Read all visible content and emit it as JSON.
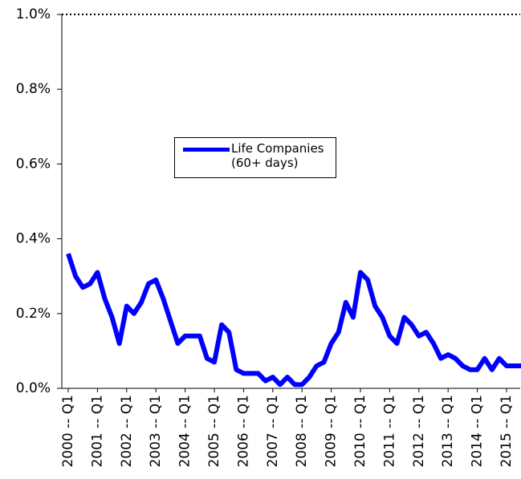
{
  "chart_data": {
    "type": "line",
    "categories": [
      "2000 -- Q1",
      null,
      null,
      null,
      "2001 -- Q1",
      null,
      null,
      null,
      "2002 -- Q1",
      null,
      null,
      null,
      "2003 -- Q1",
      null,
      null,
      null,
      "2004 -- Q1",
      null,
      null,
      null,
      "2005 -- Q1",
      null,
      null,
      null,
      "2006 -- Q1",
      null,
      null,
      null,
      "2007 -- Q1",
      null,
      null,
      null,
      "2008 -- Q1",
      null,
      null,
      null,
      "2009 -- Q1",
      null,
      null,
      null,
      "2010 -- Q1",
      null,
      null,
      null,
      "2011 -- Q1",
      null,
      null,
      null,
      "2012 -- Q1",
      null,
      null,
      null,
      "2013 -- Q1",
      null,
      null,
      null,
      "2014 -- Q1",
      null,
      null,
      null,
      "2015 -- Q1",
      null,
      null
    ],
    "series": [
      {
        "name": "Life Companies (60+ days)",
        "color": "#0000ff",
        "values": [
          0.36,
          0.3,
          0.27,
          0.28,
          0.31,
          0.24,
          0.19,
          0.12,
          0.22,
          0.2,
          0.23,
          0.28,
          0.29,
          0.24,
          0.18,
          0.12,
          0.14,
          0.14,
          0.14,
          0.08,
          0.07,
          0.17,
          0.15,
          0.05,
          0.04,
          0.04,
          0.04,
          0.02,
          0.03,
          0.01,
          0.03,
          0.01,
          0.01,
          0.03,
          0.06,
          0.07,
          0.12,
          0.15,
          0.23,
          0.19,
          0.31,
          0.29,
          0.22,
          0.19,
          0.14,
          0.12,
          0.19,
          0.17,
          0.14,
          0.15,
          0.12,
          0.08,
          0.09,
          0.08,
          0.06,
          0.05,
          0.05,
          0.08,
          0.05,
          0.08,
          0.06,
          0.06,
          0.06
        ]
      }
    ],
    "ylim": [
      0,
      1.0
    ],
    "yticks": [
      {
        "value": 0,
        "label": "0.0%"
      },
      {
        "value": 0.2,
        "label": "0.2%"
      },
      {
        "value": 0.4,
        "label": "0.4%"
      },
      {
        "value": 0.6,
        "label": "0.6%"
      },
      {
        "value": 0.8,
        "label": "0.8%"
      },
      {
        "value": 1.0,
        "label": "1.0%"
      }
    ]
  }
}
